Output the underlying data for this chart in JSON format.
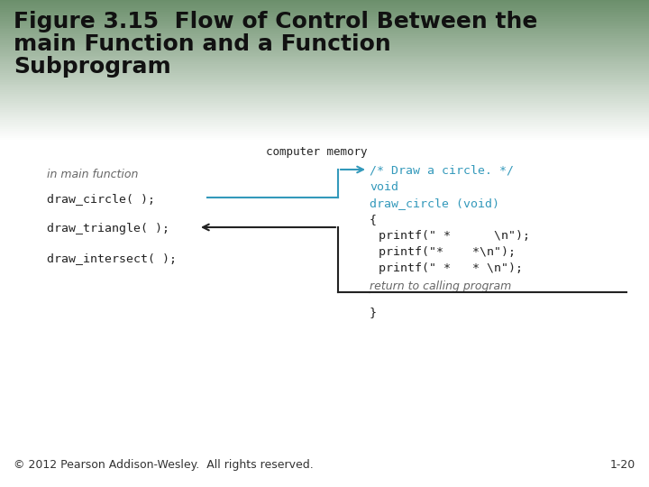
{
  "title_line1": "Figure 3.15  Flow of Control Between the",
  "title_line2": "main Function and a Function",
  "title_line3": "Subprogram",
  "title_bg_top": "#6b8f6b",
  "title_bg_bottom": "#ffffff",
  "body_bg_color": "#ffffff",
  "title_fontsize": 18,
  "title_font_weight": "bold",
  "title_text_color": "#111111",
  "footer_text": "© 2012 Pearson Addison-Wesley.  All rights reserved.",
  "page_num": "1-20",
  "footer_fontsize": 9,
  "mono_color": "#222222",
  "cyan_color": "#3399bb",
  "italic_color": "#666666",
  "label_computer_memory": "computer memory",
  "label_in_main": "in main function",
  "label_return": "return to calling program",
  "left_code_0": "draw_circle( );",
  "left_code_1": "draw_triangle( );",
  "left_code_2": "draw_intersect( );",
  "right_cyan_0": "/* Draw a circle. */",
  "right_cyan_1": "void",
  "right_cyan_2": "draw_circle (void)",
  "right_black_0": "{",
  "right_black_1": "   printf(\" *      \\n\");",
  "right_black_2": "   printf(\"*    *\\n\");",
  "right_black_3": "   printf(\" *   * \\n\");",
  "right_black_4": "}"
}
